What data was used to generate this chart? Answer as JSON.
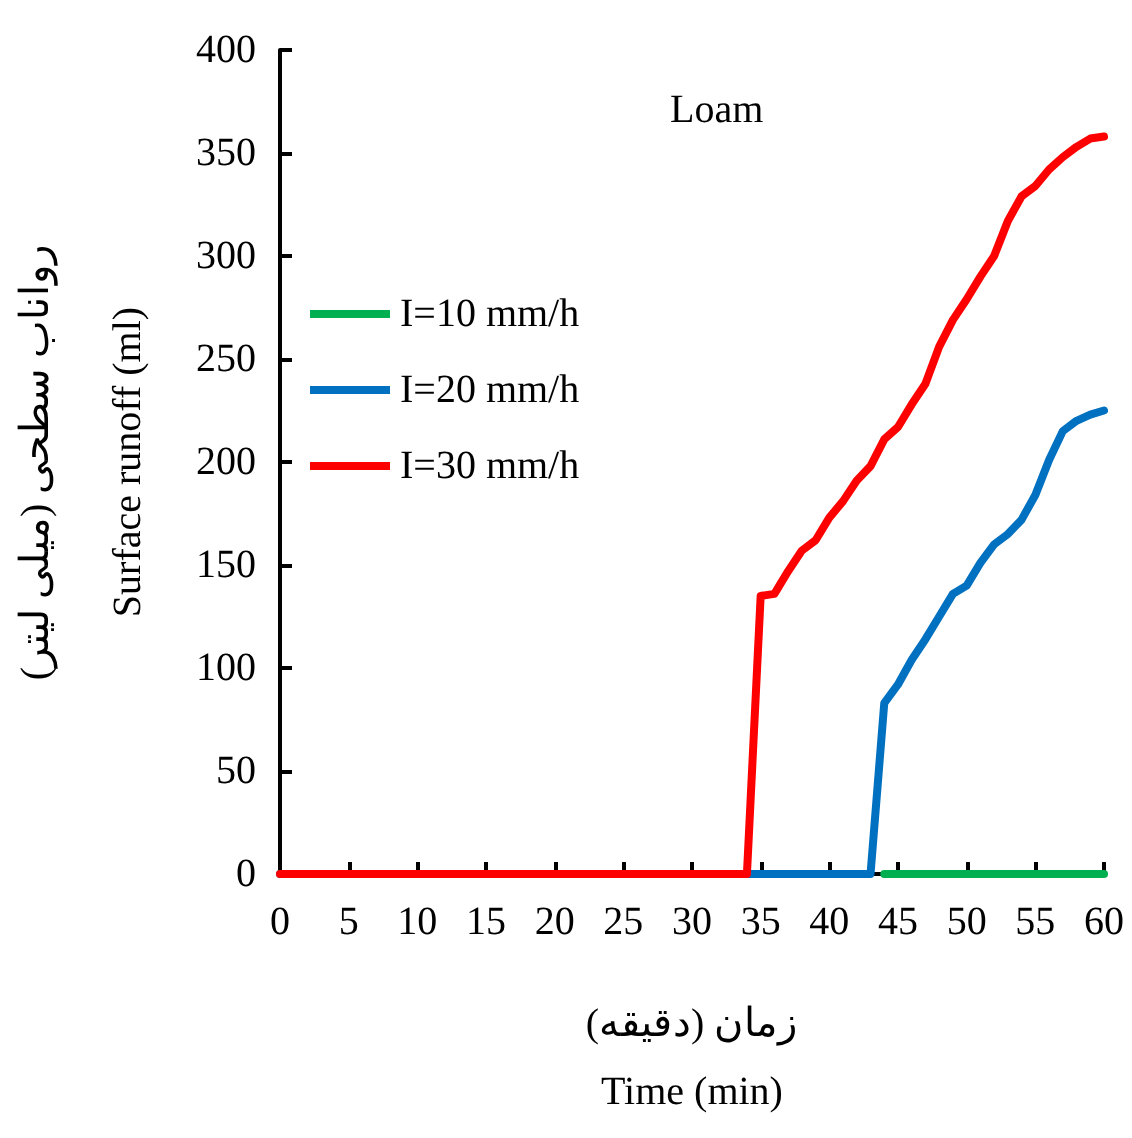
{
  "chart_data": {
    "type": "line",
    "title": "Loam",
    "xlabel": "زمان (دقیقه)\nTime (min)",
    "ylabel": "رواناب سطحی (میلی لیتر)\nSurface runoff (ml)",
    "xlim": [
      0,
      60
    ],
    "xticks": [
      0,
      5,
      10,
      15,
      20,
      25,
      30,
      35,
      40,
      45,
      50,
      55,
      60
    ],
    "ylim": [
      0,
      400
    ],
    "yticks": [
      0,
      50,
      100,
      150,
      200,
      250,
      300,
      350,
      400
    ],
    "grid": false,
    "legend": "left",
    "marker": "none",
    "line_style": "solid",
    "series": [
      {
        "name": "I=10 mm/h",
        "color": "#00b050",
        "x": [
          44,
          60
        ],
        "values": [
          0,
          0
        ]
      },
      {
        "name": "I=20 mm/h",
        "color": "#0070c0",
        "x": [
          0,
          43,
          44,
          45,
          46,
          47,
          48,
          49,
          50,
          51,
          52,
          53,
          54,
          55,
          56,
          57,
          58,
          59,
          60
        ],
        "values": [
          0,
          0,
          83,
          92,
          104,
          114,
          125,
          136,
          140,
          151,
          160,
          165,
          172,
          184,
          201,
          215,
          220,
          223,
          225
        ]
      },
      {
        "name": "I=30 mm/h",
        "color": "#ff0000",
        "x": [
          0,
          34,
          35,
          36,
          37,
          38,
          39,
          40,
          41,
          42,
          43,
          44,
          45,
          46,
          47,
          48,
          49,
          50,
          51,
          52,
          53,
          54,
          55,
          56,
          57,
          58,
          59,
          60
        ],
        "values": [
          0,
          0,
          135,
          136,
          147,
          157,
          162,
          173,
          181,
          191,
          198,
          211,
          217,
          228,
          238,
          256,
          269,
          279,
          290,
          300,
          317,
          329,
          334,
          342,
          348,
          353,
          357,
          358
        ]
      }
    ]
  }
}
